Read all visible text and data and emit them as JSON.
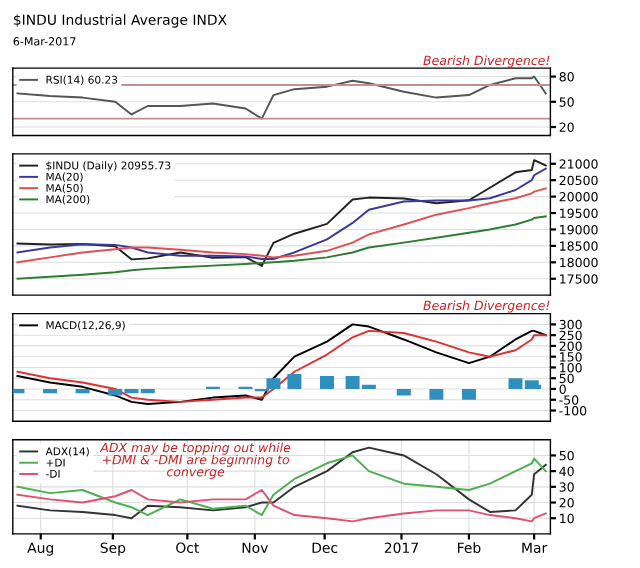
{
  "chart_data": [
    {
      "type": "line",
      "title": "$INDU Industrial Average INDX",
      "subtitle": "6-Mar-2017",
      "annotations": [
        "Bearish Divergence!"
      ],
      "x": [
        "2016-07-22",
        "2016-08-05",
        "2016-08-19",
        "2016-09-02",
        "2016-09-09",
        "2016-09-16",
        "2016-09-30",
        "2016-10-14",
        "2016-10-28",
        "2016-11-04",
        "2016-11-09",
        "2016-11-18",
        "2016-12-02",
        "2016-12-13",
        "2016-12-20",
        "2017-01-04",
        "2017-01-18",
        "2017-02-01",
        "2017-02-10",
        "2017-02-21",
        "2017-02-28",
        "2017-03-01",
        "2017-03-06"
      ],
      "series": [
        {
          "name": "RSI(14) 60.23",
          "color": "#555555",
          "values": [
            60,
            57,
            55,
            50,
            35,
            45,
            45,
            48,
            42,
            30,
            58,
            65,
            68,
            75,
            72,
            62,
            55,
            58,
            70,
            78,
            78,
            80,
            60
          ]
        }
      ],
      "xlim": [
        "2016-07-20",
        "2017-03-08"
      ],
      "ylim": [
        10,
        90
      ],
      "yticks": [
        20,
        50,
        80
      ],
      "ref_lines": [
        {
          "axis": "y",
          "value": 70,
          "color": "#c09090"
        },
        {
          "axis": "y",
          "value": 30,
          "color": "#c09090"
        }
      ],
      "grid": true,
      "legend": "top left",
      "tick_labels": "y"
    },
    {
      "type": "line",
      "x": [
        "2016-07-22",
        "2016-08-05",
        "2016-08-19",
        "2016-09-02",
        "2016-09-09",
        "2016-09-16",
        "2016-09-30",
        "2016-10-14",
        "2016-10-28",
        "2016-11-04",
        "2016-11-09",
        "2016-11-18",
        "2016-12-02",
        "2016-12-13",
        "2016-12-20",
        "2017-01-04",
        "2017-01-18",
        "2017-02-01",
        "2017-02-10",
        "2017-02-21",
        "2017-02-28",
        "2017-03-01",
        "2017-03-06"
      ],
      "series": [
        {
          "name": "$INDU (Daily) 20955.73",
          "color": "#222222",
          "values": [
            18570,
            18540,
            18560,
            18490,
            18090,
            18120,
            18300,
            18140,
            18160,
            17890,
            18590,
            18870,
            19170,
            19910,
            19970,
            19940,
            19800,
            19890,
            20270,
            20740,
            20810,
            21110,
            20950
          ]
        },
        {
          "name": "MA(20)",
          "color": "#3a3a9a",
          "values": [
            18300,
            18450,
            18550,
            18530,
            18450,
            18300,
            18200,
            18200,
            18180,
            18100,
            18100,
            18300,
            18700,
            19200,
            19600,
            19850,
            19880,
            19880,
            19950,
            20200,
            20500,
            20650,
            20850
          ]
        },
        {
          "name": "MA(50)",
          "color": "#e05050",
          "values": [
            18000,
            18150,
            18300,
            18400,
            18450,
            18450,
            18380,
            18300,
            18250,
            18200,
            18150,
            18200,
            18350,
            18600,
            18850,
            19150,
            19450,
            19650,
            19800,
            19950,
            20100,
            20150,
            20250
          ]
        },
        {
          "name": "MA(200)",
          "color": "#2e7d32",
          "values": [
            17500,
            17560,
            17620,
            17700,
            17760,
            17800,
            17850,
            17900,
            17950,
            17980,
            18000,
            18050,
            18150,
            18300,
            18450,
            18600,
            18750,
            18900,
            19000,
            19150,
            19300,
            19350,
            19400
          ]
        }
      ],
      "xlim": [
        "2016-07-20",
        "2017-03-08"
      ],
      "ylim": [
        17000,
        21300
      ],
      "yticks": [
        17500,
        18000,
        18500,
        19000,
        19500,
        20000,
        20500,
        21000
      ],
      "grid": true,
      "legend": "top left",
      "tick_labels": "y"
    },
    {
      "type": "line",
      "annotations": [
        "Bearish Divergence!"
      ],
      "x": [
        "2016-07-22",
        "2016-08-05",
        "2016-08-19",
        "2016-09-02",
        "2016-09-09",
        "2016-09-16",
        "2016-09-30",
        "2016-10-14",
        "2016-10-28",
        "2016-11-04",
        "2016-11-09",
        "2016-11-18",
        "2016-12-02",
        "2016-12-13",
        "2016-12-20",
        "2017-01-04",
        "2017-01-18",
        "2017-02-01",
        "2017-02-10",
        "2017-02-21",
        "2017-02-28",
        "2017-03-01",
        "2017-03-06"
      ],
      "series": [
        {
          "type": "bar",
          "color": "#2f8fbf",
          "values": [
            -20,
            -20,
            -20,
            -30,
            -20,
            -20,
            0,
            10,
            10,
            -10,
            50,
            70,
            60,
            60,
            20,
            -30,
            -50,
            -50,
            0,
            50,
            40,
            20,
            0
          ]
        },
        {
          "name": "MACD(12,26,9)",
          "color": "#000000",
          "values": [
            60,
            30,
            10,
            -30,
            -60,
            -70,
            -60,
            -40,
            -30,
            -50,
            50,
            150,
            220,
            300,
            290,
            230,
            170,
            120,
            150,
            230,
            270,
            270,
            250
          ]
        },
        {
          "color": "#e03030",
          "values": [
            80,
            50,
            30,
            0,
            -40,
            -50,
            -60,
            -50,
            -40,
            -40,
            0,
            80,
            160,
            240,
            270,
            260,
            220,
            170,
            150,
            180,
            230,
            250,
            250
          ]
        }
      ],
      "xlim": [
        "2016-07-20",
        "2017-03-08"
      ],
      "ylim": [
        -150,
        350
      ],
      "yticks": [
        -100,
        -50,
        0,
        50,
        100,
        150,
        200,
        250,
        300
      ],
      "grid": true,
      "legend": "top left",
      "tick_labels": "y"
    },
    {
      "type": "line",
      "annotations": [
        "ADX may be topping out while +DMI & -DMI are beginning to converge"
      ],
      "x": [
        "2016-07-22",
        "2016-08-05",
        "2016-08-19",
        "2016-09-02",
        "2016-09-09",
        "2016-09-16",
        "2016-09-30",
        "2016-10-14",
        "2016-10-28",
        "2016-11-04",
        "2016-11-09",
        "2016-11-18",
        "2016-12-02",
        "2016-12-13",
        "2016-12-20",
        "2017-01-04",
        "2017-01-18",
        "2017-02-01",
        "2017-02-10",
        "2017-02-21",
        "2017-02-28",
        "2017-03-01",
        "2017-03-06"
      ],
      "series": [
        {
          "name": "ADX(14)",
          "color": "#333333",
          "values": [
            18,
            15,
            14,
            12,
            10,
            18,
            17,
            15,
            17,
            20,
            20,
            30,
            40,
            52,
            55,
            50,
            38,
            22,
            14,
            15,
            25,
            38,
            44
          ]
        },
        {
          "name": "+DI",
          "color": "#4caf50",
          "values": [
            30,
            26,
            28,
            20,
            17,
            12,
            22,
            16,
            18,
            12,
            25,
            35,
            45,
            50,
            40,
            32,
            30,
            28,
            32,
            40,
            45,
            48,
            40
          ]
        },
        {
          "name": "-DI",
          "color": "#e05070",
          "values": [
            25,
            22,
            20,
            24,
            28,
            22,
            20,
            22,
            22,
            28,
            18,
            12,
            10,
            8,
            10,
            13,
            15,
            15,
            12,
            10,
            8,
            10,
            13
          ]
        }
      ],
      "xlim": [
        "2016-07-20",
        "2017-03-08"
      ],
      "ylim": [
        0,
        60
      ],
      "yticks": [
        10,
        20,
        30,
        40,
        50
      ],
      "xticks": [
        {
          "value": "2016-08-01",
          "label": "Aug"
        },
        {
          "value": "2016-09-01",
          "label": "Sep"
        },
        {
          "value": "2016-10-03",
          "label": "Oct"
        },
        {
          "value": "2016-11-01",
          "label": "Nov"
        },
        {
          "value": "2016-12-01",
          "label": "Dec"
        },
        {
          "value": "2017-01-03",
          "label": "2017"
        },
        {
          "value": "2017-02-01",
          "label": "Feb"
        },
        {
          "value": "2017-03-01",
          "label": "Mar"
        }
      ],
      "grid": true,
      "legend": "top left"
    }
  ]
}
